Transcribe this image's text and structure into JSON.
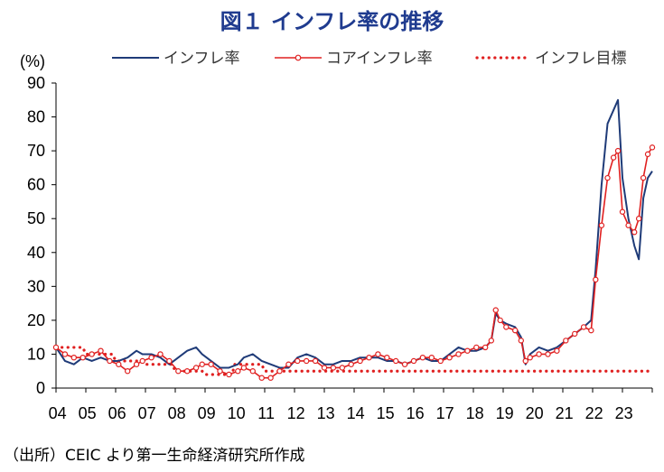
{
  "title": "図１ インフレ率の推移",
  "source": "（出所）CEIC より第一生命経済研究所作成",
  "colors": {
    "inflation": "#1f3b78",
    "core": "#e02020",
    "target": "#e02020",
    "title": "#1f3b8f"
  },
  "chart_data": {
    "type": "line",
    "title": "図１ インフレ率の推移",
    "ylabel": "(%)",
    "ylim": [
      0,
      90
    ],
    "yticks": [
      "0",
      "10",
      "20",
      "30",
      "40",
      "50",
      "60",
      "70",
      "80",
      "90"
    ],
    "xticks": [
      "04",
      "05",
      "06",
      "07",
      "08",
      "09",
      "10",
      "11",
      "12",
      "13",
      "14",
      "15",
      "16",
      "17",
      "18",
      "19",
      "20",
      "21",
      "22",
      "23"
    ],
    "xlim": [
      2004.0,
      2024.0
    ],
    "grid": false,
    "legend": "top",
    "series": [
      {
        "name": "インフレ率",
        "style": "solid",
        "x": [
          2004.0,
          2004.3,
          2004.6,
          2004.9,
          2005.2,
          2005.5,
          2005.8,
          2006.1,
          2006.4,
          2006.7,
          2006.9,
          2007.2,
          2007.5,
          2007.8,
          2008.1,
          2008.4,
          2008.7,
          2008.9,
          2009.2,
          2009.5,
          2009.8,
          2010.1,
          2010.3,
          2010.6,
          2010.9,
          2011.2,
          2011.5,
          2011.8,
          2012.1,
          2012.4,
          2012.7,
          2013.0,
          2013.3,
          2013.6,
          2013.9,
          2014.2,
          2014.5,
          2014.8,
          2015.1,
          2015.4,
          2015.7,
          2016.0,
          2016.3,
          2016.6,
          2016.9,
          2017.2,
          2017.5,
          2017.8,
          2018.1,
          2018.4,
          2018.6,
          2018.75,
          2018.9,
          2019.1,
          2019.4,
          2019.6,
          2019.75,
          2019.9,
          2020.2,
          2020.5,
          2020.8,
          2021.1,
          2021.4,
          2021.7,
          2021.95,
          2022.1,
          2022.3,
          2022.5,
          2022.7,
          2022.85,
          2023.0,
          2023.2,
          2023.4,
          2023.55,
          2023.7,
          2023.85,
          2024.0
        ],
        "values": [
          12,
          8,
          7,
          9,
          8,
          9,
          8,
          8,
          9,
          11,
          10,
          10,
          9,
          7,
          9,
          11,
          12,
          10,
          8,
          6,
          6,
          7,
          9,
          10,
          8,
          7,
          6,
          6,
          9,
          10,
          9,
          7,
          7,
          8,
          8,
          9,
          9,
          9,
          8,
          8,
          7,
          8,
          9,
          8,
          8,
          10,
          12,
          11,
          11,
          12,
          14,
          22,
          20,
          19,
          18,
          15,
          7,
          10,
          12,
          11,
          12,
          14,
          16,
          18,
          20,
          35,
          60,
          78,
          82,
          85,
          62,
          50,
          42,
          38,
          56,
          62,
          64
        ]
      },
      {
        "name": "コアインフレ率",
        "style": "line-circle",
        "x": [
          2004.0,
          2004.3,
          2004.6,
          2004.9,
          2005.2,
          2005.5,
          2005.8,
          2006.1,
          2006.4,
          2006.7,
          2006.9,
          2007.2,
          2007.5,
          2007.8,
          2008.1,
          2008.4,
          2008.7,
          2008.9,
          2009.2,
          2009.5,
          2009.8,
          2010.1,
          2010.3,
          2010.6,
          2010.9,
          2011.2,
          2011.5,
          2011.8,
          2012.1,
          2012.4,
          2012.7,
          2013.0,
          2013.3,
          2013.6,
          2013.9,
          2014.2,
          2014.5,
          2014.8,
          2015.1,
          2015.4,
          2015.7,
          2016.0,
          2016.3,
          2016.6,
          2016.9,
          2017.2,
          2017.5,
          2017.8,
          2018.1,
          2018.4,
          2018.6,
          2018.75,
          2018.9,
          2019.1,
          2019.4,
          2019.6,
          2019.75,
          2019.9,
          2020.2,
          2020.5,
          2020.8,
          2021.1,
          2021.4,
          2021.7,
          2021.95,
          2022.1,
          2022.3,
          2022.5,
          2022.7,
          2022.85,
          2023.0,
          2023.2,
          2023.4,
          2023.55,
          2023.7,
          2023.85,
          2024.0
        ],
        "values": [
          12,
          10,
          9,
          9,
          10,
          11,
          8,
          7,
          5,
          7,
          8,
          9,
          10,
          8,
          5,
          5,
          6,
          7,
          7,
          5,
          4,
          5,
          6,
          5,
          3,
          3,
          5,
          7,
          8,
          8,
          8,
          6,
          6,
          6,
          7,
          8,
          9,
          10,
          9,
          8,
          7,
          8,
          9,
          9,
          8,
          9,
          10,
          11,
          12,
          12,
          14,
          23,
          20,
          18,
          17,
          14,
          8,
          9,
          10,
          10,
          11,
          14,
          16,
          18,
          17,
          32,
          48,
          62,
          68,
          70,
          52,
          48,
          46,
          50,
          62,
          69,
          71
        ]
      },
      {
        "name": "インフレ目標",
        "style": "dotted",
        "x": [
          2004.0,
          2004.9,
          2005.0,
          2005.9,
          2006.0,
          2006.9,
          2007.0,
          2007.9,
          2008.0,
          2008.9,
          2009.0,
          2009.9,
          2010.0,
          2010.9,
          2011.0,
          2011.9,
          2012.0,
          2024.0
        ],
        "values": [
          12,
          12,
          10,
          10,
          8,
          8,
          7,
          7,
          5,
          5,
          4,
          4,
          7,
          7,
          5,
          5,
          5,
          5
        ]
      }
    ]
  }
}
